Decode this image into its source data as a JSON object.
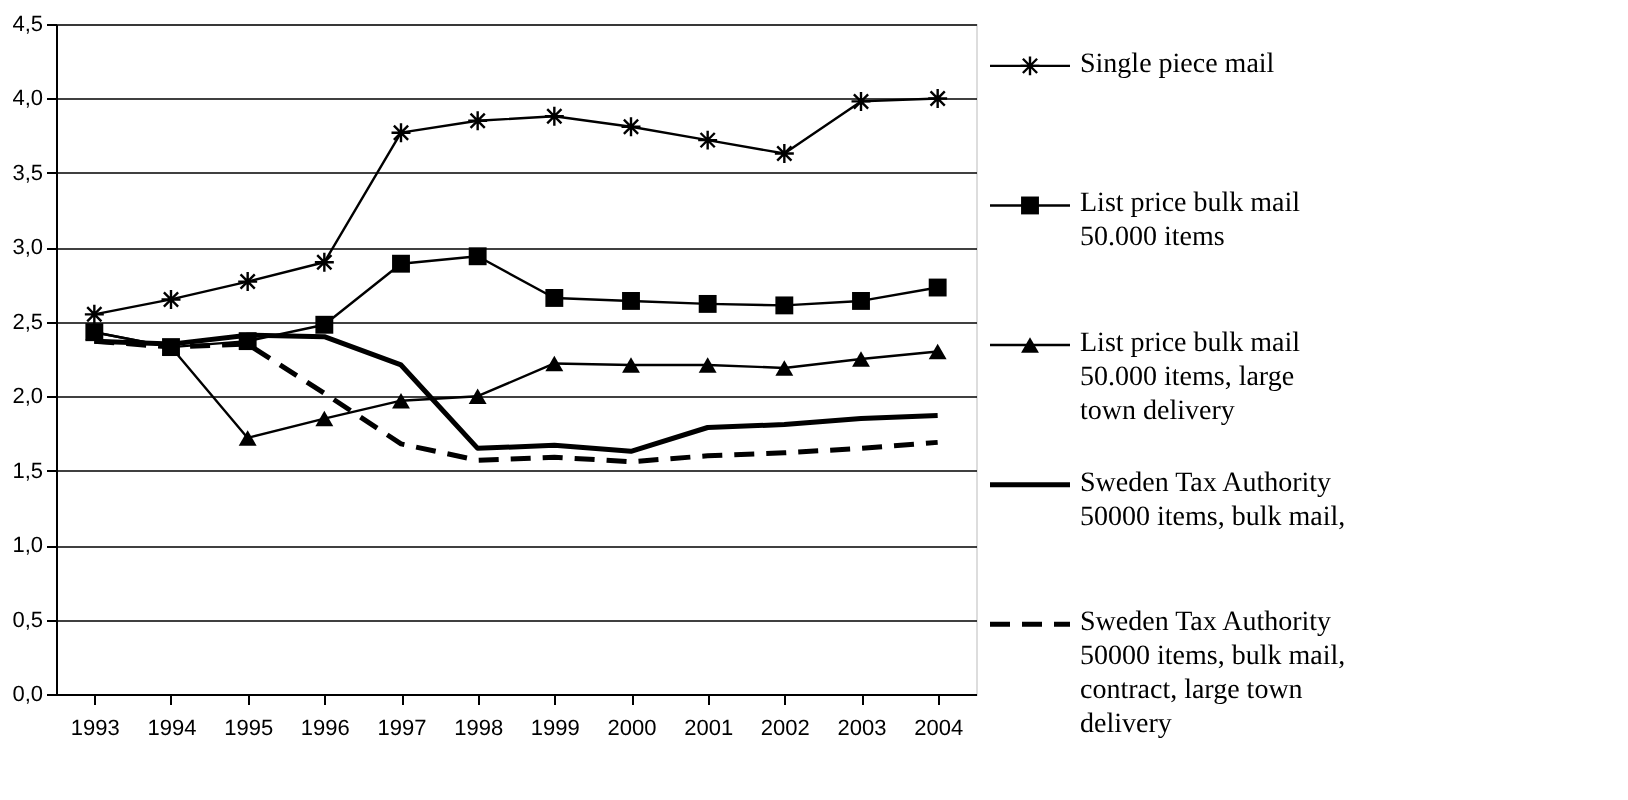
{
  "chart_data": {
    "type": "line",
    "categories": [
      "1993",
      "1994",
      "1995",
      "1996",
      "1997",
      "1998",
      "1999",
      "2000",
      "2001",
      "2002",
      "2003",
      "2004"
    ],
    "series": [
      {
        "name": "Single piece mail",
        "color": "#000000",
        "marker": "cross",
        "line_style": "solid",
        "values": [
          2.55,
          2.65,
          2.77,
          2.9,
          3.77,
          3.85,
          3.88,
          3.81,
          3.72,
          3.63,
          3.98,
          4.0
        ]
      },
      {
        "name": "List price bulk mail 50.000 items",
        "color": "#000000",
        "marker": "square",
        "line_style": "solid",
        "values": [
          2.43,
          2.33,
          2.37,
          2.48,
          2.89,
          2.94,
          2.66,
          2.64,
          2.62,
          2.61,
          2.64,
          2.73
        ]
      },
      {
        "name": "List price bulk mail 50.000 items, large town delivery",
        "color": "#000000",
        "marker": "triangle",
        "line_style": "solid",
        "values": [
          2.43,
          2.33,
          1.72,
          1.85,
          1.97,
          2.0,
          2.22,
          2.21,
          2.21,
          2.19,
          2.25,
          2.3
        ]
      },
      {
        "name": "Sweden Tax Authority 50000 items, bulk mail,",
        "color": "#000000",
        "marker": "none",
        "line_style": "solid",
        "values": [
          2.37,
          2.35,
          2.41,
          2.4,
          2.21,
          1.65,
          1.67,
          1.63,
          1.79,
          1.81,
          1.85,
          1.87
        ]
      },
      {
        "name": "Sweden Tax Authority 50000 items, bulk mail, contract, large town delivery",
        "color": "#000000",
        "marker": "none",
        "line_style": "dashed",
        "values": [
          2.37,
          2.33,
          2.35,
          2.02,
          1.68,
          1.57,
          1.59,
          1.56,
          1.6,
          1.62,
          1.65,
          1.69
        ]
      }
    ],
    "ylim": [
      0,
      4.5
    ],
    "yticks": [
      {
        "value": 0,
        "label": "0,0"
      },
      {
        "value": 0.5,
        "label": "0,5"
      },
      {
        "value": 1,
        "label": "1,0"
      },
      {
        "value": 1.5,
        "label": "1,5"
      },
      {
        "value": 2,
        "label": "2,0"
      },
      {
        "value": 2.5,
        "label": "2,5"
      },
      {
        "value": 3,
        "label": "3,0"
      },
      {
        "value": 3.5,
        "label": "3,5"
      },
      {
        "value": 4,
        "label": "4,0"
      },
      {
        "value": 4.5,
        "label": "4,5"
      }
    ],
    "grid": "y",
    "legend": "right"
  }
}
